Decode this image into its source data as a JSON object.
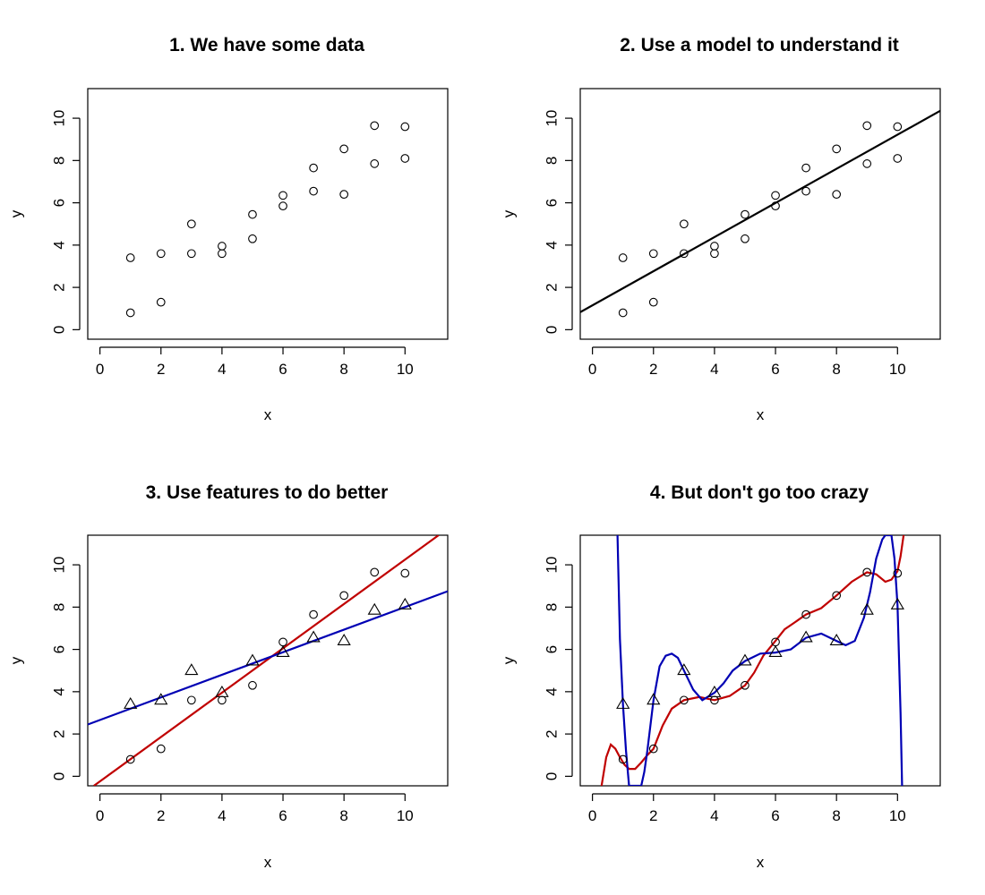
{
  "colors": {
    "black": "#000000",
    "red": "#c00000",
    "blue": "#0000b4"
  },
  "chart_data": [
    {
      "type": "scatter",
      "title": "1. We have some data",
      "xlabel": "x",
      "ylabel": "y",
      "xlim": [
        -0.4,
        11.4
      ],
      "ylim": [
        -0.45,
        11.4
      ],
      "xticks": [
        0,
        2,
        4,
        6,
        8,
        10
      ],
      "yticks": [
        0,
        2,
        4,
        6,
        8,
        10
      ],
      "grid": false,
      "series": [
        {
          "marker": "circle",
          "x": [
            1,
            1,
            2,
            2,
            3,
            3,
            4,
            4,
            5,
            5,
            6,
            6,
            7,
            7,
            8,
            8,
            9,
            9,
            10,
            10
          ],
          "y": [
            3.4,
            0.8,
            3.6,
            1.3,
            5.0,
            3.6,
            3.95,
            3.6,
            5.45,
            4.3,
            6.35,
            5.85,
            7.65,
            6.55,
            8.55,
            6.4,
            9.65,
            7.85,
            9.6,
            8.1
          ]
        }
      ],
      "lines": []
    },
    {
      "type": "scatter",
      "title": "2. Use a model to understand it",
      "xlabel": "x",
      "ylabel": "y",
      "xlim": [
        -0.4,
        11.4
      ],
      "ylim": [
        -0.45,
        11.4
      ],
      "xticks": [
        0,
        2,
        4,
        6,
        8,
        10
      ],
      "yticks": [
        0,
        2,
        4,
        6,
        8,
        10
      ],
      "grid": false,
      "series": [
        {
          "marker": "circle",
          "x": [
            1,
            1,
            2,
            2,
            3,
            3,
            4,
            4,
            5,
            5,
            6,
            6,
            7,
            7,
            8,
            8,
            9,
            9,
            10,
            10
          ],
          "y": [
            3.4,
            0.8,
            3.6,
            1.3,
            5.0,
            3.6,
            3.95,
            3.6,
            5.45,
            4.3,
            6.35,
            5.85,
            7.65,
            6.55,
            8.55,
            6.4,
            9.65,
            7.85,
            9.6,
            8.1
          ]
        }
      ],
      "lines": [
        {
          "color": "#000000",
          "x": [
            -0.4,
            11.4
          ],
          "y": [
            0.83,
            10.35
          ]
        }
      ]
    },
    {
      "type": "scatter",
      "title": "3. Use features to do better",
      "xlabel": "x",
      "ylabel": "y",
      "xlim": [
        -0.4,
        11.4
      ],
      "ylim": [
        -0.45,
        11.4
      ],
      "xticks": [
        0,
        2,
        4,
        6,
        8,
        10
      ],
      "yticks": [
        0,
        2,
        4,
        6,
        8,
        10
      ],
      "grid": false,
      "series": [
        {
          "marker": "circle",
          "x": [
            1,
            2,
            3,
            4,
            5,
            6,
            7,
            8,
            9,
            10
          ],
          "y": [
            0.8,
            1.3,
            3.6,
            3.6,
            4.3,
            6.35,
            7.65,
            8.55,
            9.65,
            9.6
          ]
        },
        {
          "marker": "triangle",
          "x": [
            1,
            2,
            3,
            4,
            5,
            6,
            7,
            8,
            9,
            10
          ],
          "y": [
            3.4,
            3.6,
            5.0,
            3.95,
            5.45,
            5.85,
            6.55,
            6.4,
            7.85,
            8.1
          ]
        }
      ],
      "lines": [
        {
          "color": "#c00000",
          "x": [
            -0.2,
            11.1
          ],
          "y": [
            -0.45,
            11.4
          ]
        },
        {
          "color": "#0000b4",
          "x": [
            -0.4,
            11.4
          ],
          "y": [
            2.45,
            8.75
          ]
        }
      ]
    },
    {
      "type": "scatter",
      "title": "4. But don't go too crazy",
      "xlabel": "x",
      "ylabel": "y",
      "xlim": [
        -0.4,
        11.4
      ],
      "ylim": [
        -0.45,
        11.4
      ],
      "xticks": [
        0,
        2,
        4,
        6,
        8,
        10
      ],
      "yticks": [
        0,
        2,
        4,
        6,
        8,
        10
      ],
      "grid": false,
      "series": [
        {
          "marker": "circle",
          "x": [
            1,
            2,
            3,
            4,
            5,
            6,
            7,
            8,
            9,
            10
          ],
          "y": [
            0.8,
            1.3,
            3.6,
            3.6,
            4.3,
            6.35,
            7.65,
            8.55,
            9.65,
            9.6
          ]
        },
        {
          "marker": "triangle",
          "x": [
            1,
            2,
            3,
            4,
            5,
            6,
            7,
            8,
            9,
            10
          ],
          "y": [
            3.4,
            3.6,
            5.0,
            3.95,
            5.45,
            5.85,
            6.55,
            6.4,
            7.85,
            8.1
          ]
        }
      ],
      "lines": [
        {
          "color": "#c00000",
          "x": [
            0.3,
            0.45,
            0.6,
            0.75,
            0.9,
            1.05,
            1.2,
            1.4,
            1.6,
            1.8,
            2.0,
            2.3,
            2.6,
            3.0,
            3.5,
            4.0,
            4.5,
            5.0,
            5.3,
            5.6,
            6.0,
            6.3,
            6.6,
            7.0,
            7.5,
            8.0,
            8.5,
            9.0,
            9.3,
            9.6,
            9.8,
            10.0,
            10.1,
            10.2
          ],
          "y": [
            -0.45,
            0.9,
            1.5,
            1.3,
            0.9,
            0.55,
            0.35,
            0.35,
            0.65,
            1.0,
            1.3,
            2.4,
            3.2,
            3.6,
            3.75,
            3.6,
            3.8,
            4.3,
            4.9,
            5.7,
            6.4,
            6.95,
            7.25,
            7.65,
            7.95,
            8.55,
            9.2,
            9.65,
            9.55,
            9.2,
            9.3,
            9.7,
            10.4,
            11.4
          ]
        },
        {
          "color": "#0000b4",
          "x": [
            0.82,
            0.9,
            1.0,
            1.1,
            1.2,
            1.35,
            1.5,
            1.6,
            1.7,
            1.8,
            2.0,
            2.2,
            2.4,
            2.6,
            2.8,
            3.0,
            3.3,
            3.6,
            4.0,
            4.3,
            4.6,
            5.0,
            5.5,
            6.0,
            6.5,
            7.0,
            7.5,
            8.0,
            8.3,
            8.6,
            8.9,
            9.1,
            9.3,
            9.5,
            9.6,
            9.65,
            9.7,
            9.8,
            9.9,
            10.0,
            10.1,
            10.15
          ],
          "y": [
            11.4,
            6.5,
            3.4,
            1.2,
            -0.45,
            -0.45,
            -0.45,
            -0.45,
            0.2,
            1.2,
            3.6,
            5.2,
            5.7,
            5.8,
            5.6,
            5.0,
            4.1,
            3.6,
            3.95,
            4.4,
            5.0,
            5.45,
            5.8,
            5.85,
            6.0,
            6.55,
            6.75,
            6.4,
            6.2,
            6.4,
            7.5,
            8.7,
            10.3,
            11.2,
            11.4,
            11.4,
            11.4,
            11.4,
            10.3,
            8.1,
            3.0,
            -0.45
          ]
        }
      ]
    }
  ]
}
